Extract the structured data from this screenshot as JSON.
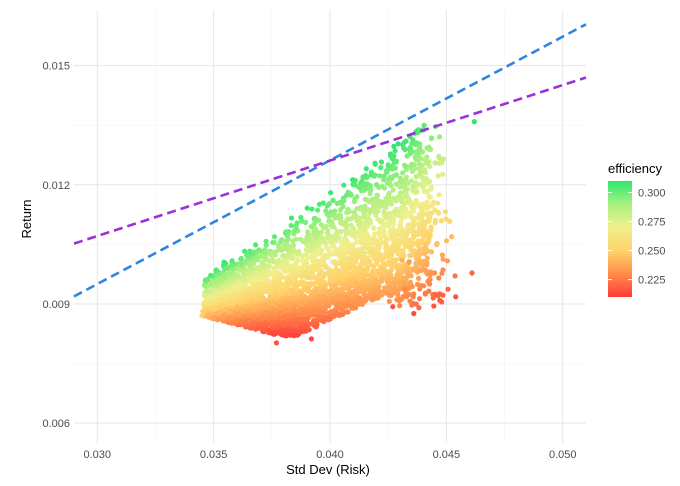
{
  "chart_data": {
    "type": "scatter",
    "xlabel": "Std Dev (Risk)",
    "ylabel": "Return",
    "xlim": [
      0.029,
      0.051
    ],
    "ylim": [
      0.0055,
      0.0164
    ],
    "x_ticks": [
      {
        "value": 0.03,
        "label": "0.030"
      },
      {
        "value": 0.035,
        "label": "0.035"
      },
      {
        "value": 0.04,
        "label": "0.040"
      },
      {
        "value": 0.045,
        "label": "0.045"
      },
      {
        "value": 0.05,
        "label": "0.050"
      }
    ],
    "y_ticks": [
      {
        "value": 0.006,
        "label": "0.006"
      },
      {
        "value": 0.009,
        "label": "0.009"
      },
      {
        "value": 0.012,
        "label": "0.012"
      },
      {
        "value": 0.015,
        "label": "0.015"
      }
    ],
    "grid": true,
    "legend": {
      "title": "efficiency",
      "position": "right",
      "range": [
        0.21,
        0.31
      ],
      "breaks": [
        {
          "value": 0.3,
          "label": "0.300"
        },
        {
          "value": 0.275,
          "label": "0.275"
        },
        {
          "value": 0.25,
          "label": "0.250"
        },
        {
          "value": 0.225,
          "label": "0.225"
        }
      ],
      "colors": [
        "#ff3b3b",
        "#ff8c4a",
        "#ffd36b",
        "#f0f08c",
        "#a8f080",
        "#2ee86e"
      ]
    },
    "lines": [
      {
        "color": "#2e86de",
        "style": "dashed",
        "points": [
          [
            0.029,
            0.00919
          ],
          [
            0.051,
            0.01604
          ]
        ]
      },
      {
        "color": "#9b30d9",
        "style": "dashed",
        "points": [
          [
            0.029,
            0.01052
          ],
          [
            0.051,
            0.0147
          ]
        ]
      }
    ],
    "cloud_approx": {
      "x_range": [
        0.0345,
        0.0465
      ],
      "y_range": [
        0.008,
        0.0135
      ]
    }
  }
}
